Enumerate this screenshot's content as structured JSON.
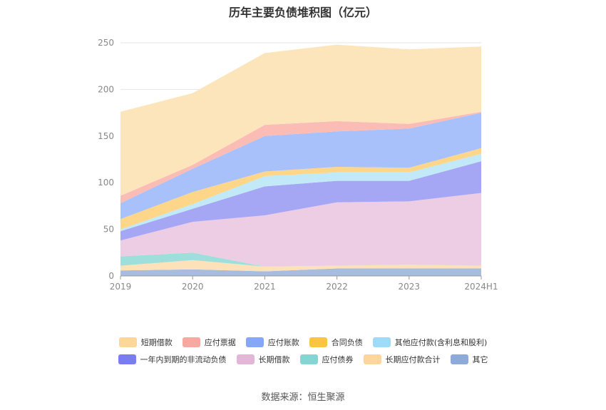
{
  "chart_data": {
    "type": "area",
    "stacked": true,
    "title": "历年主要负债堆积图（亿元）",
    "categories": [
      "2019",
      "2020",
      "2021",
      "2022",
      "2023",
      "2024H1"
    ],
    "ylim": [
      0,
      250
    ],
    "yticks": [
      0,
      50,
      100,
      150,
      200,
      250
    ],
    "grid": true,
    "legend_position": "bottom",
    "series": [
      {
        "name": "其它",
        "color": "#a7bde0",
        "values": [
          6,
          7,
          5,
          8,
          8,
          8
        ]
      },
      {
        "name": "长期应付款合计",
        "color": "#fde1b8",
        "values": [
          5,
          10,
          5,
          3,
          4,
          3
        ]
      },
      {
        "name": "应付债券",
        "color": "#9edfdc",
        "values": [
          10,
          8,
          0,
          0,
          0,
          0
        ]
      },
      {
        "name": "长期借款",
        "color": "#edcde3",
        "values": [
          17,
          33,
          55,
          68,
          68,
          78
        ]
      },
      {
        "name": "一年内到期的非流动负债",
        "color": "#a5a7f5",
        "values": [
          10,
          14,
          31,
          23,
          22,
          34
        ]
      },
      {
        "name": "其他应付款(含利息和股利)",
        "color": "#c1e9f8",
        "values": [
          2,
          5,
          11,
          9,
          9,
          8
        ]
      },
      {
        "name": "合同负债",
        "color": "#fdd68a",
        "values": [
          11,
          13,
          5,
          6,
          5,
          6
        ]
      },
      {
        "name": "应付账款",
        "color": "#a9c1fa",
        "values": [
          17,
          25,
          38,
          38,
          42,
          38
        ]
      },
      {
        "name": "应付票据",
        "color": "#fbbcb6",
        "values": [
          8,
          4,
          12,
          11,
          5,
          1
        ]
      },
      {
        "name": "短期借款",
        "color": "#fde5bb",
        "values": [
          90,
          77,
          77,
          82,
          80,
          70
        ]
      }
    ]
  },
  "legend": {
    "row1": [
      {
        "name": "短期借款",
        "color": "#fdd69a"
      },
      {
        "name": "应付票据",
        "color": "#f8a99f"
      },
      {
        "name": "应付账款",
        "color": "#86a6f7"
      },
      {
        "name": "合同负债",
        "color": "#fbc443"
      },
      {
        "name": "其他应付款(含利息和股利)",
        "color": "#9ddbf8"
      }
    ],
    "row2": [
      {
        "name": "一年内到期的非流动负债",
        "color": "#7a7df0"
      },
      {
        "name": "长期借款",
        "color": "#e3b5d6"
      },
      {
        "name": "应付债券",
        "color": "#85d6d3"
      },
      {
        "name": "长期应付款合计",
        "color": "#fdd59d"
      },
      {
        "name": "其它",
        "color": "#8eaad8"
      }
    ]
  },
  "source": "数据来源：恒生聚源"
}
